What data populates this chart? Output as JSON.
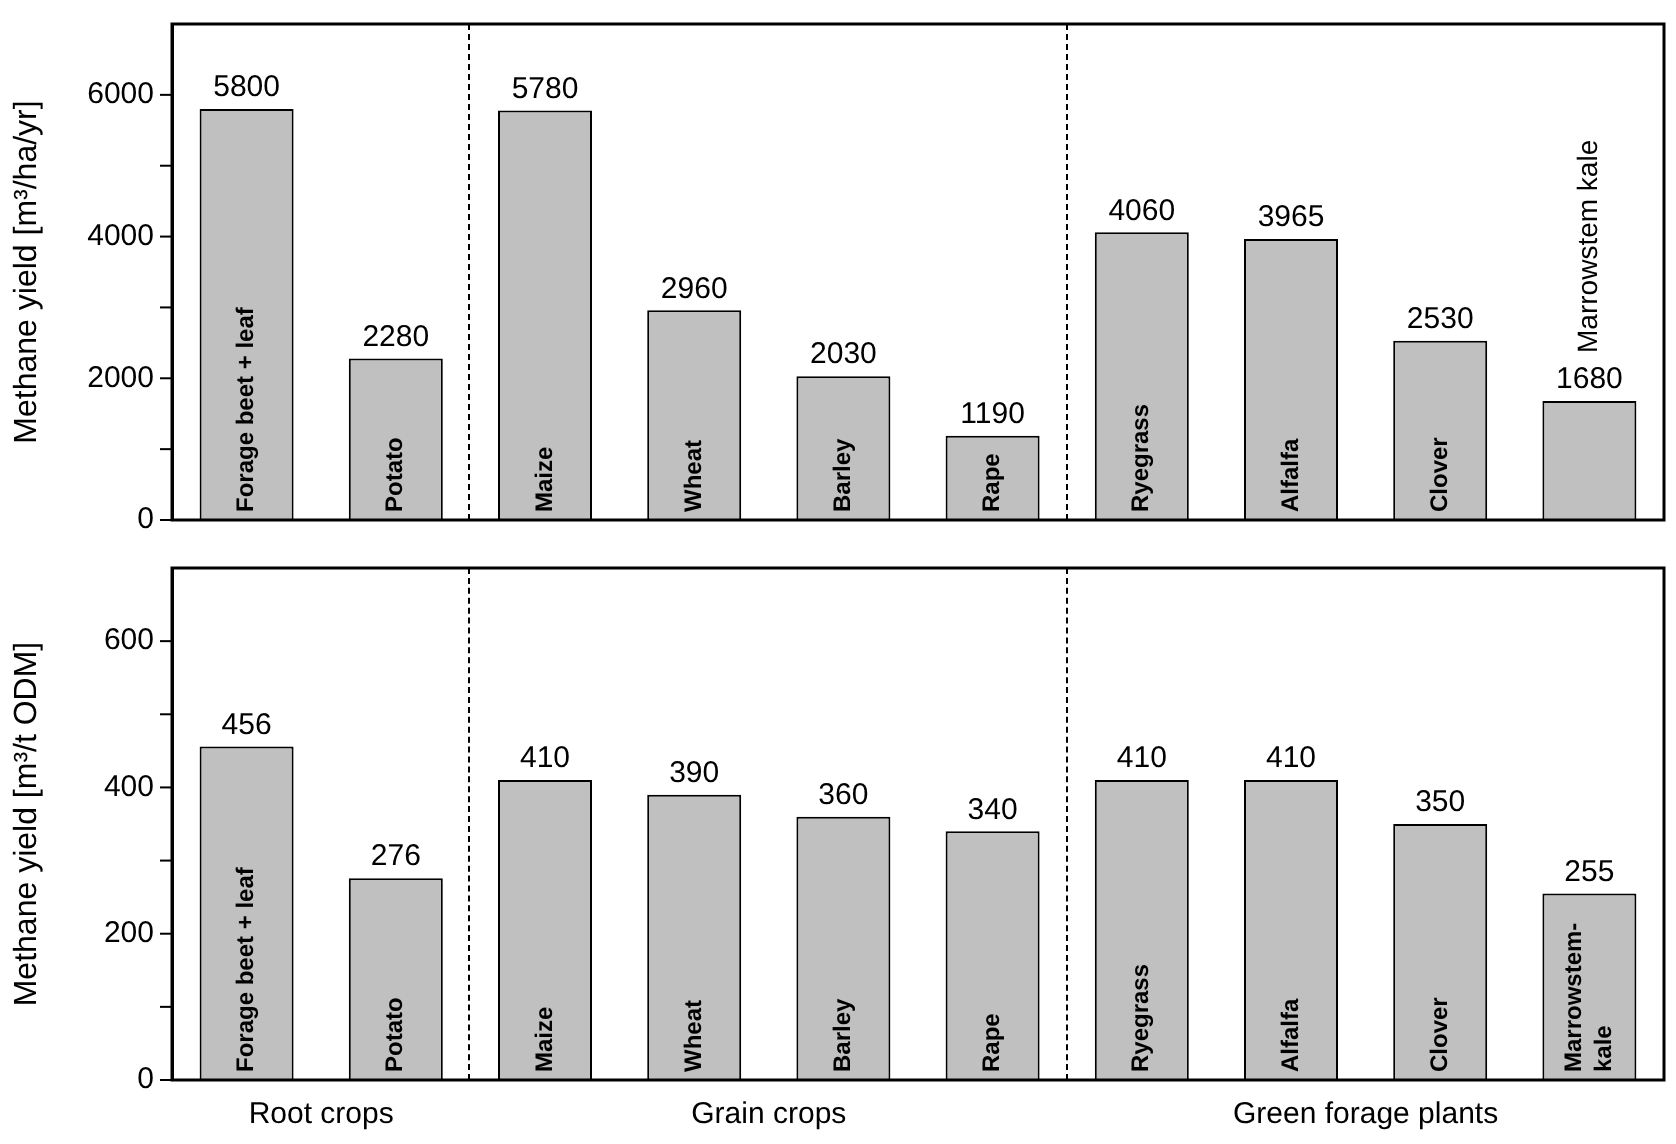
{
  "chart_data": [
    {
      "type": "bar",
      "ylabel": "Methane yield [m³/ha/yr]",
      "categories": [
        "Forage beet + leaf",
        "Potato",
        "Maize",
        "Wheat",
        "Barley",
        "Rape",
        "Ryegrass",
        "Alfalfa",
        "Clover",
        "Marrowstem kale"
      ],
      "values": [
        5800,
        2280,
        5780,
        2960,
        2030,
        1190,
        4060,
        3965,
        2530,
        1680
      ],
      "color": "#c0c0c0",
      "ylim": [
        0,
        7000
      ],
      "yticks": [
        0,
        {
          "value": 1000,
          "label": null
        },
        2000,
        {
          "value": 3000,
          "label": null
        },
        4000,
        {
          "value": 5000,
          "label": null
        },
        6000
      ],
      "data_labels": true,
      "grid": false,
      "legend": false
    },
    {
      "type": "bar",
      "ylabel": "Methane yield [m³/t ODM]",
      "categories": [
        "Forage beet + leaf",
        "Potato",
        "Maize",
        "Wheat",
        "Barley",
        "Rape",
        "Ryegrass",
        "Alfalfa",
        "Clover",
        "Marrowstem-kale"
      ],
      "values": [
        456,
        276,
        410,
        390,
        360,
        340,
        410,
        410,
        350,
        255
      ],
      "color": "#c0c0c0",
      "ylim": [
        0,
        700
      ],
      "yticks": [
        0,
        {
          "value": 100,
          "label": null
        },
        200,
        {
          "value": 300,
          "label": null
        },
        400,
        {
          "value": 500,
          "label": null
        },
        600
      ],
      "data_labels": true,
      "grid": false,
      "legend": false,
      "annotations": [
        "Root crops",
        "Grain crops",
        "Green forage plants"
      ]
    }
  ]
}
